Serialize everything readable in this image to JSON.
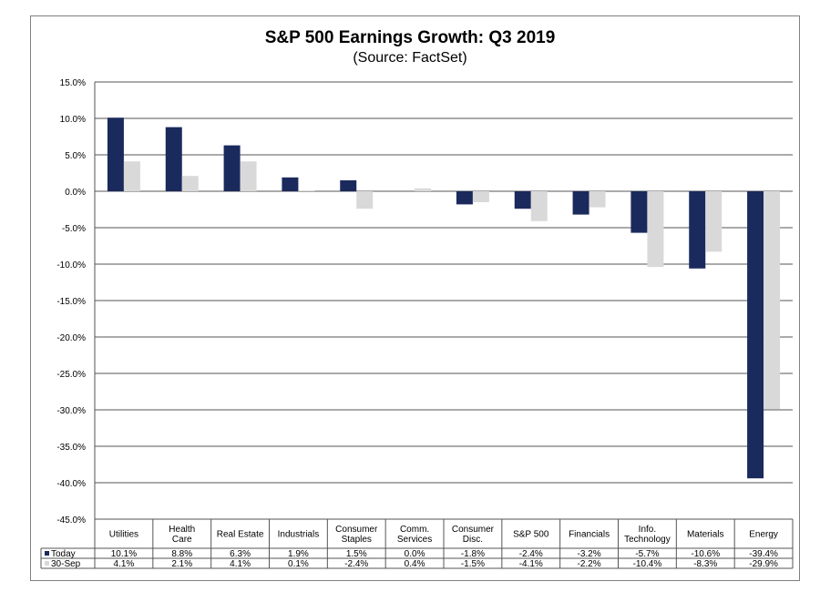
{
  "chart_data": {
    "type": "bar",
    "title": "S&P 500 Earnings Growth: Q3 2019",
    "subtitle": "(Source: FactSet)",
    "categories": [
      [
        "Utilities"
      ],
      [
        "Health",
        "Care"
      ],
      [
        "Real Estate"
      ],
      [
        "Industrials"
      ],
      [
        "Consumer",
        "Staples"
      ],
      [
        "Comm.",
        "Services"
      ],
      [
        "Consumer",
        "Disc."
      ],
      [
        "S&P 500"
      ],
      [
        "Financials"
      ],
      [
        "Info.",
        "Technology"
      ],
      [
        "Materials"
      ],
      [
        "Energy"
      ]
    ],
    "series": [
      {
        "name": "Today",
        "color": "#1b2a5c",
        "values": [
          10.1,
          8.8,
          6.3,
          1.9,
          1.5,
          0.0,
          -1.8,
          -2.4,
          -3.2,
          -5.7,
          -10.6,
          -39.4
        ],
        "labels": [
          "10.1%",
          "8.8%",
          "6.3%",
          "1.9%",
          "1.5%",
          "0.0%",
          "-1.8%",
          "-2.4%",
          "-3.2%",
          "-5.7%",
          "-10.6%",
          "-39.4%"
        ]
      },
      {
        "name": "30-Sep",
        "color": "#d9d9d9",
        "values": [
          4.1,
          2.1,
          4.1,
          0.1,
          -2.4,
          0.4,
          -1.5,
          -4.1,
          -2.2,
          -10.4,
          -8.3,
          -29.9
        ],
        "labels": [
          "4.1%",
          "2.1%",
          "4.1%",
          "0.1%",
          "-2.4%",
          "0.4%",
          "-1.5%",
          "-4.1%",
          "-2.2%",
          "-10.4%",
          "-8.3%",
          "-29.9%"
        ]
      }
    ],
    "ylim": [
      -45,
      15
    ],
    "yticks": [
      15,
      10,
      5,
      0,
      -5,
      -10,
      -15,
      -20,
      -25,
      -30,
      -35,
      -40,
      -45
    ],
    "ytick_labels": [
      "15.0%",
      "10.0%",
      "5.0%",
      "0.0%",
      "-5.0%",
      "-10.0%",
      "-15.0%",
      "-20.0%",
      "-25.0%",
      "-30.0%",
      "-35.0%",
      "-40.0%",
      "-45.0%"
    ],
    "grid": true,
    "legend": "data-table"
  }
}
